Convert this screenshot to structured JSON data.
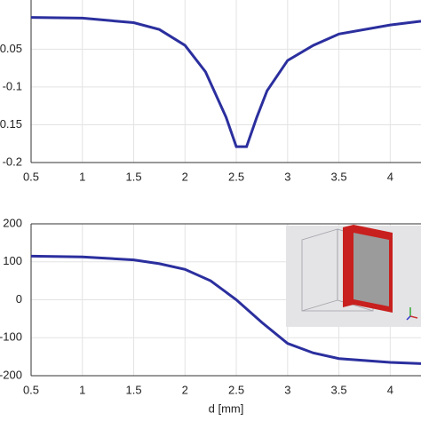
{
  "chart_data": [
    {
      "type": "line",
      "xlim": [
        0.5,
        4.3
      ],
      "ylim": [
        -0.2,
        0.015
      ],
      "xticks": [
        0.5,
        1,
        1.5,
        2,
        2.5,
        3,
        3.5,
        4
      ],
      "yticks": [
        -0.05,
        -0.1,
        -0.15,
        -0.2
      ],
      "grid": true,
      "series": [
        {
          "color": "#2b2f9e",
          "x": [
            0.5,
            1,
            1.5,
            1.75,
            2,
            2.2,
            2.4,
            2.5,
            2.6,
            2.7,
            2.8,
            3,
            3.25,
            3.5,
            4,
            4.3
          ],
          "values": [
            -0.008,
            -0.009,
            -0.015,
            -0.024,
            -0.045,
            -0.08,
            -0.14,
            -0.179,
            -0.179,
            -0.14,
            -0.105,
            -0.065,
            -0.045,
            -0.03,
            -0.018,
            -0.013
          ]
        }
      ]
    },
    {
      "type": "line",
      "xlim": [
        0.5,
        4.3
      ],
      "ylim": [
        -200,
        200
      ],
      "xlabel": "d [mm]",
      "xticks": [
        0.5,
        1,
        1.5,
        2,
        2.5,
        3,
        3.5,
        4
      ],
      "yticks": [
        200,
        100,
        0,
        -100,
        -200
      ],
      "grid": true,
      "series": [
        {
          "color": "#2b2f9e",
          "x": [
            0.5,
            1,
            1.5,
            1.75,
            2,
            2.25,
            2.5,
            2.75,
            3,
            3.25,
            3.5,
            4,
            4.3
          ],
          "values": [
            115,
            113,
            105,
            95,
            80,
            50,
            0,
            -60,
            -115,
            -140,
            -155,
            -165,
            -168
          ]
        }
      ]
    }
  ]
}
